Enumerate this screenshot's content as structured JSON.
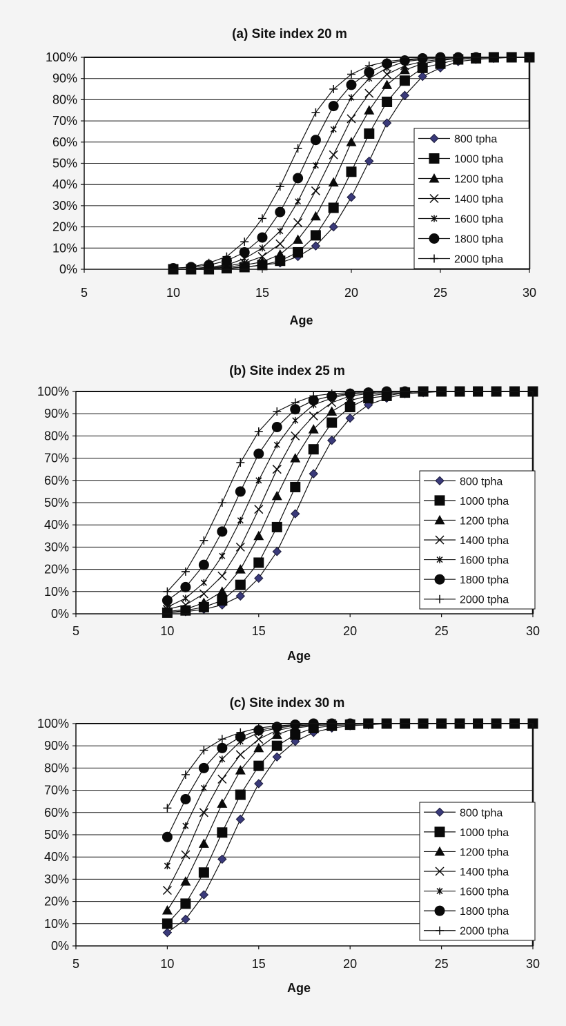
{
  "chart_data": [
    {
      "type": "line",
      "title": "(a) Site index 20 m",
      "xlabel": "Age",
      "ylabel": "",
      "xlim": [
        5,
        30
      ],
      "ylim": [
        0,
        100
      ],
      "xticks": [
        "5",
        "10",
        "15",
        "20",
        "25",
        "30"
      ],
      "yticks": [
        "0%",
        "10%",
        "20%",
        "30%",
        "40%",
        "50%",
        "60%",
        "70%",
        "80%",
        "90%",
        "100%"
      ],
      "grid": "horizontal",
      "legend_position": "right",
      "x": [
        10,
        11,
        12,
        13,
        14,
        15,
        16,
        17,
        18,
        19,
        20,
        21,
        22,
        23,
        24,
        25,
        26,
        27,
        28,
        29,
        30
      ],
      "series": [
        {
          "name": "800 tpha",
          "marker": "diamond",
          "values": [
            0,
            0,
            0,
            0.3,
            1,
            2,
            3,
            6,
            11,
            20,
            34,
            51,
            69,
            82,
            91,
            95,
            98,
            99,
            99.5,
            100,
            100
          ]
        },
        {
          "name": "1000 tpha",
          "marker": "square",
          "values": [
            0,
            0,
            0,
            0.5,
            1,
            2,
            4,
            8,
            16,
            29,
            46,
            64,
            79,
            89,
            95,
            97,
            99,
            99.5,
            100,
            100,
            100
          ]
        },
        {
          "name": "1200 tpha",
          "marker": "triangle",
          "values": [
            0,
            0,
            0.3,
            1,
            2,
            3.5,
            7,
            14,
            25,
            41,
            60,
            75,
            87,
            94,
            97,
            98.5,
            99.5,
            100,
            100,
            100,
            100
          ]
        },
        {
          "name": "1400 tpha",
          "marker": "x",
          "values": [
            0,
            0,
            0.5,
            1.5,
            3,
            6,
            12,
            22,
            37,
            54,
            71,
            83,
            92,
            96,
            98,
            99,
            99.5,
            100,
            100,
            100,
            100
          ]
        },
        {
          "name": "1600 tpha",
          "marker": "star",
          "values": [
            0,
            0.3,
            1,
            2,
            5,
            10,
            18,
            32,
            49,
            66,
            81,
            90,
            95,
            98,
            99,
            99.5,
            100,
            100,
            100,
            100,
            100
          ]
        },
        {
          "name": "1800 tpha",
          "marker": "circle",
          "values": [
            0.5,
            1,
            2,
            4,
            8,
            15,
            27,
            43,
            61,
            77,
            87,
            93,
            97,
            98.5,
            99.5,
            100,
            100,
            100,
            100,
            100,
            100
          ]
        },
        {
          "name": "2000 tpha",
          "marker": "plus",
          "values": [
            0.5,
            1,
            3,
            6,
            13,
            24,
            39,
            57,
            74,
            85,
            92,
            96,
            98,
            99,
            99.5,
            100,
            100,
            100,
            100,
            100,
            100
          ]
        }
      ]
    },
    {
      "type": "line",
      "title": "(b) Site index 25 m",
      "xlabel": "Age",
      "ylabel": "",
      "xlim": [
        5,
        30
      ],
      "ylim": [
        0,
        100
      ],
      "xticks": [
        "5",
        "10",
        "15",
        "20",
        "25",
        "30"
      ],
      "yticks": [
        "0%",
        "10%",
        "20%",
        "30%",
        "40%",
        "50%",
        "60%",
        "70%",
        "80%",
        "90%",
        "100%"
      ],
      "grid": "horizontal",
      "legend_position": "right",
      "x": [
        10,
        11,
        12,
        13,
        14,
        15,
        16,
        17,
        18,
        19,
        20,
        21,
        22,
        23,
        24,
        25,
        26,
        27,
        28,
        29,
        30
      ],
      "series": [
        {
          "name": "800 tpha",
          "marker": "diamond",
          "values": [
            0.5,
            1,
            2,
            4,
            8,
            16,
            28,
            45,
            63,
            78,
            88,
            94,
            97,
            99,
            99.5,
            100,
            100,
            100,
            100,
            100,
            100
          ]
        },
        {
          "name": "1000 tpha",
          "marker": "square",
          "values": [
            0.5,
            1.5,
            3,
            6,
            13,
            23,
            39,
            57,
            74,
            86,
            93,
            97,
            98,
            99.5,
            100,
            100,
            100,
            100,
            100,
            100,
            100
          ]
        },
        {
          "name": "1200 tpha",
          "marker": "triangle",
          "values": [
            1,
            2,
            5,
            10,
            20,
            35,
            53,
            70,
            83,
            91,
            96,
            98,
            99,
            99.5,
            100,
            100,
            100,
            100,
            100,
            100,
            100
          ]
        },
        {
          "name": "1400 tpha",
          "marker": "x",
          "values": [
            2,
            4,
            9,
            17,
            30,
            47,
            65,
            80,
            89,
            95,
            98,
            99,
            99.5,
            100,
            100,
            100,
            100,
            100,
            100,
            100,
            100
          ]
        },
        {
          "name": "1600 tpha",
          "marker": "star",
          "values": [
            3,
            7,
            14,
            26,
            42,
            60,
            76,
            87,
            94,
            97,
            99,
            99.5,
            100,
            100,
            100,
            100,
            100,
            100,
            100,
            100,
            100
          ]
        },
        {
          "name": "1800 tpha",
          "marker": "circle",
          "values": [
            6,
            12,
            22,
            37,
            55,
            72,
            84,
            92,
            96,
            98,
            99,
            99.5,
            100,
            100,
            100,
            100,
            100,
            100,
            100,
            100,
            100
          ]
        },
        {
          "name": "2000 tpha",
          "marker": "plus",
          "values": [
            10,
            19,
            33,
            50,
            68,
            82,
            91,
            95,
            98,
            99,
            99.5,
            100,
            100,
            100,
            100,
            100,
            100,
            100,
            100,
            100,
            100
          ]
        }
      ]
    },
    {
      "type": "line",
      "title": "(c) Site index 30 m",
      "xlabel": "Age",
      "ylabel": "",
      "xlim": [
        5,
        30
      ],
      "ylim": [
        0,
        100
      ],
      "xticks": [
        "5",
        "10",
        "15",
        "20",
        "25",
        "30"
      ],
      "yticks": [
        "0%",
        "10%",
        "20%",
        "30%",
        "40%",
        "50%",
        "60%",
        "70%",
        "80%",
        "90%",
        "100%"
      ],
      "grid": "horizontal",
      "legend_position": "right",
      "x": [
        10,
        11,
        12,
        13,
        14,
        15,
        16,
        17,
        18,
        19,
        20,
        21,
        22,
        23,
        24,
        25,
        26,
        27,
        28,
        29,
        30
      ],
      "series": [
        {
          "name": "800 tpha",
          "marker": "diamond",
          "values": [
            6,
            12,
            23,
            39,
            57,
            73,
            85,
            92,
            96,
            98,
            99,
            99.5,
            100,
            100,
            100,
            100,
            100,
            100,
            100,
            100,
            100
          ]
        },
        {
          "name": "1000 tpha",
          "marker": "square",
          "values": [
            10,
            19,
            33,
            51,
            68,
            81,
            90,
            95,
            98,
            99,
            99.5,
            100,
            100,
            100,
            100,
            100,
            100,
            100,
            100,
            100,
            100
          ]
        },
        {
          "name": "1200 tpha",
          "marker": "triangle",
          "values": [
            16,
            29,
            46,
            64,
            79,
            89,
            95,
            98,
            99,
            99.5,
            100,
            100,
            100,
            100,
            100,
            100,
            100,
            100,
            100,
            100,
            100
          ]
        },
        {
          "name": "1400 tpha",
          "marker": "x",
          "values": [
            25,
            41,
            60,
            75,
            86,
            93,
            97,
            98.5,
            99.5,
            100,
            100,
            100,
            100,
            100,
            100,
            100,
            100,
            100,
            100,
            100,
            100
          ]
        },
        {
          "name": "1600 tpha",
          "marker": "star",
          "values": [
            36,
            54,
            71,
            84,
            92,
            96,
            98,
            99,
            99.5,
            100,
            100,
            100,
            100,
            100,
            100,
            100,
            100,
            100,
            100,
            100,
            100
          ]
        },
        {
          "name": "1800 tpha",
          "marker": "circle",
          "values": [
            49,
            66,
            80,
            89,
            94,
            97,
            98.5,
            99.5,
            100,
            100,
            100,
            100,
            100,
            100,
            100,
            100,
            100,
            100,
            100,
            100,
            100
          ]
        },
        {
          "name": "2000 tpha",
          "marker": "plus",
          "values": [
            62,
            77,
            88,
            93,
            96,
            98,
            99,
            99.5,
            100,
            100,
            100,
            100,
            100,
            100,
            100,
            100,
            100,
            100,
            100,
            100,
            100
          ]
        }
      ]
    }
  ]
}
